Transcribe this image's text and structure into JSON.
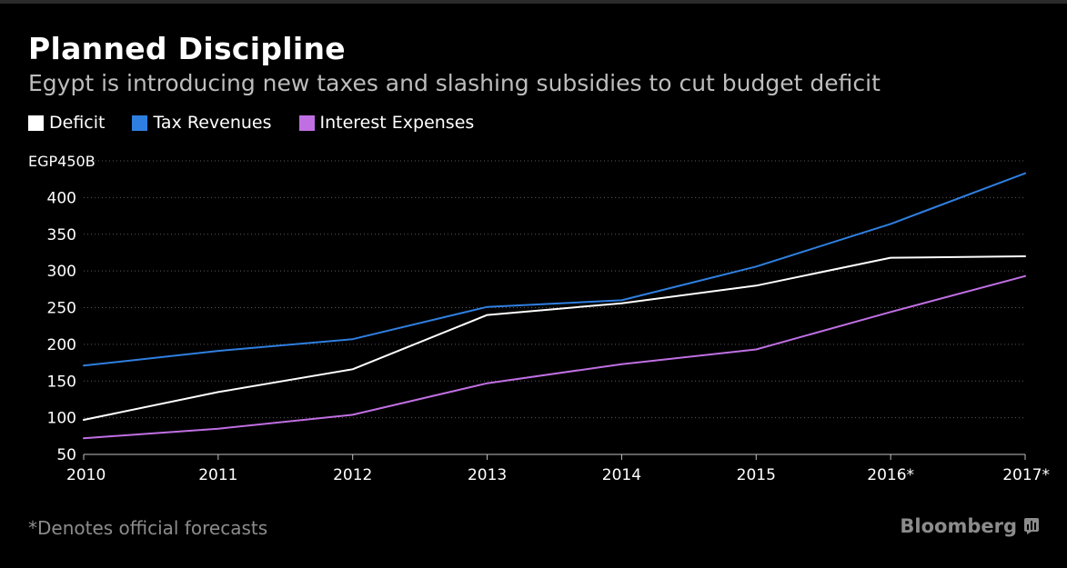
{
  "header": {
    "title": "Planned Discipline",
    "subtitle": "Egypt is introducing new taxes and slashing subsidies to cut budget deficit"
  },
  "footer": {
    "footnote": "*Denotes official forecasts",
    "brand": "Bloomberg"
  },
  "chart_data": {
    "type": "line",
    "title": "Planned Discipline",
    "subtitle": "Egypt is introducing new taxes and slashing subsidies to cut budget deficit",
    "xlabel": "",
    "ylabel": "",
    "categories": [
      "2010",
      "2011",
      "2012",
      "2013",
      "2014",
      "2015",
      "2016*",
      "2017*"
    ],
    "ylim": [
      50,
      450
    ],
    "yticks": [
      50,
      100,
      150,
      200,
      250,
      300,
      350,
      400,
      450
    ],
    "ytick_labels": [
      "50",
      "100",
      "150",
      "200",
      "250",
      "300",
      "350",
      "400",
      "EGP450B"
    ],
    "grid": true,
    "legend_position": "top-left",
    "series": [
      {
        "name": "Deficit",
        "color": "#ffffff",
        "values": [
          97,
          135,
          166,
          240,
          256,
          280,
          318,
          320
        ]
      },
      {
        "name": "Tax Revenues",
        "color": "#2f7fe0",
        "values": [
          171,
          191,
          207,
          251,
          260,
          306,
          364,
          433
        ]
      },
      {
        "name": "Interest Expenses",
        "color": "#c06fe3",
        "values": [
          72,
          85,
          104,
          147,
          173,
          193,
          244,
          293
        ]
      }
    ]
  }
}
